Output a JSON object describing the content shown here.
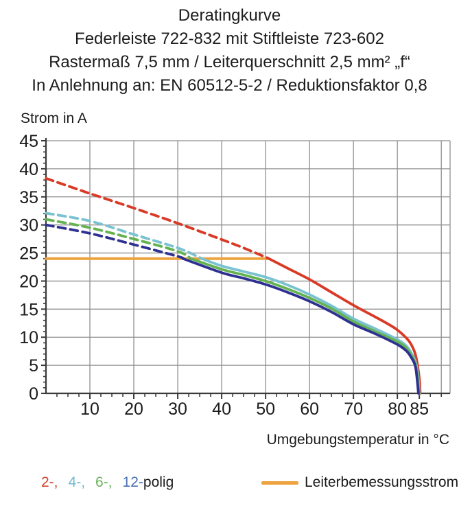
{
  "title": {
    "line1": "Deratingkurve",
    "line2": "Federleiste 722-832 mit Stiftleiste 723-602",
    "line3": "Rastermaß 7,5 mm / Leiterquerschnitt 2,5 mm² „f“",
    "line4": "In Anlehnung an: EN 60512-5-2 / Reduktionsfaktor 0,8"
  },
  "axes": {
    "y_label": "Strom in A",
    "x_label": "Umgebungstemperatur in °C"
  },
  "legend": {
    "pole_items": [
      {
        "label": "2-,",
        "color": "#d2452e"
      },
      {
        "label": "4-,",
        "color": "#6fb9cc"
      },
      {
        "label": "6-,",
        "color": "#68b35a"
      },
      {
        "label": "12-",
        "color": "#4a70b5"
      }
    ],
    "pole_suffix": "polig",
    "pole_suffix_color": "#1b1b1b",
    "rated_current_label": "Leiterbemessungsstrom",
    "rated_current_color": "#eda23e"
  },
  "chart_data": {
    "type": "line",
    "title": "Deratingkurve",
    "xlabel": "Umgebungstemperatur in °C",
    "ylabel": "Strom in A",
    "xlim": [
      0,
      92
    ],
    "ylim": [
      0,
      45
    ],
    "grid": true,
    "x_major_ticks": [
      10,
      20,
      30,
      40,
      50,
      60,
      70,
      80,
      85
    ],
    "x_gridlines": [
      10,
      20,
      30,
      40,
      50,
      60,
      70,
      80,
      90
    ],
    "x_minor_step": 2.5,
    "y_major_ticks": [
      0,
      5,
      10,
      15,
      20,
      25,
      30,
      35,
      40,
      45
    ],
    "y_gridlines": [
      5,
      10,
      15,
      20,
      25,
      30,
      35,
      40,
      45
    ],
    "y_minor_step": 1,
    "grid_color": "#8f8f8f",
    "axis_color": "#3a3a3a",
    "rated_current": {
      "label": "Leiterbemessungsstrom",
      "value": 24,
      "x_start": 0,
      "x_end": 50.5,
      "color": "#eda23e"
    },
    "series": [
      {
        "name": "2-polig",
        "color": "#d93a26",
        "dashed": [
          [
            0,
            38.3
          ],
          [
            10,
            35.6
          ],
          [
            20,
            33.0
          ],
          [
            30,
            30.3
          ],
          [
            40,
            27.4
          ],
          [
            45,
            25.9
          ],
          [
            50.5,
            24.1
          ]
        ],
        "solid": [
          [
            50.5,
            24.1
          ],
          [
            55,
            22.3
          ],
          [
            60,
            20.3
          ],
          [
            65,
            18.0
          ],
          [
            70,
            15.7
          ],
          [
            75,
            13.6
          ],
          [
            78,
            12.3
          ],
          [
            80,
            11.3
          ],
          [
            82,
            9.9
          ],
          [
            83,
            8.9
          ],
          [
            84,
            7.2
          ],
          [
            84.6,
            5.0
          ],
          [
            85,
            2.6
          ],
          [
            85.2,
            0
          ]
        ]
      },
      {
        "name": "4-polig",
        "color": "#7ac2d2",
        "dashed": [
          [
            0,
            32.1
          ],
          [
            10,
            30.7
          ],
          [
            20,
            28.3
          ],
          [
            30,
            25.9
          ],
          [
            35.5,
            24.0
          ]
        ],
        "solid": [
          [
            35.5,
            24.0
          ],
          [
            40,
            22.7
          ],
          [
            45,
            21.7
          ],
          [
            50,
            20.7
          ],
          [
            55,
            19.3
          ],
          [
            60,
            17.6
          ],
          [
            65,
            15.6
          ],
          [
            70,
            13.3
          ],
          [
            75,
            11.5
          ],
          [
            80,
            9.6
          ],
          [
            82,
            8.5
          ],
          [
            83,
            7.4
          ],
          [
            84,
            5.9
          ],
          [
            84.6,
            3.8
          ],
          [
            85,
            0
          ]
        ]
      },
      {
        "name": "6-polig",
        "color": "#65b253",
        "dashed": [
          [
            0,
            31.0
          ],
          [
            10,
            29.5
          ],
          [
            20,
            27.5
          ],
          [
            30,
            25.3
          ],
          [
            33,
            24.0
          ]
        ],
        "solid": [
          [
            33,
            24.0
          ],
          [
            40,
            22.1
          ],
          [
            45,
            21.1
          ],
          [
            50,
            20.0
          ],
          [
            55,
            18.6
          ],
          [
            60,
            17.0
          ],
          [
            65,
            15.1
          ],
          [
            70,
            12.8
          ],
          [
            75,
            11.0
          ],
          [
            80,
            9.2
          ],
          [
            82,
            8.1
          ],
          [
            83,
            7.0
          ],
          [
            84,
            5.5
          ],
          [
            84.5,
            3.5
          ],
          [
            84.9,
            0
          ]
        ]
      },
      {
        "name": "12-polig",
        "color": "#2e3192",
        "dashed": [
          [
            0,
            30.0
          ],
          [
            10,
            28.5
          ],
          [
            20,
            26.5
          ],
          [
            30,
            24.4
          ],
          [
            31.2,
            24.0
          ]
        ],
        "solid": [
          [
            31.2,
            24.0
          ],
          [
            40,
            21.5
          ],
          [
            45,
            20.5
          ],
          [
            50,
            19.4
          ],
          [
            55,
            18.0
          ],
          [
            60,
            16.4
          ],
          [
            65,
            14.5
          ],
          [
            70,
            12.3
          ],
          [
            75,
            10.6
          ],
          [
            80,
            8.7
          ],
          [
            82,
            7.6
          ],
          [
            83,
            6.6
          ],
          [
            84,
            5.1
          ],
          [
            84.4,
            3.2
          ],
          [
            84.8,
            0
          ]
        ]
      }
    ]
  }
}
